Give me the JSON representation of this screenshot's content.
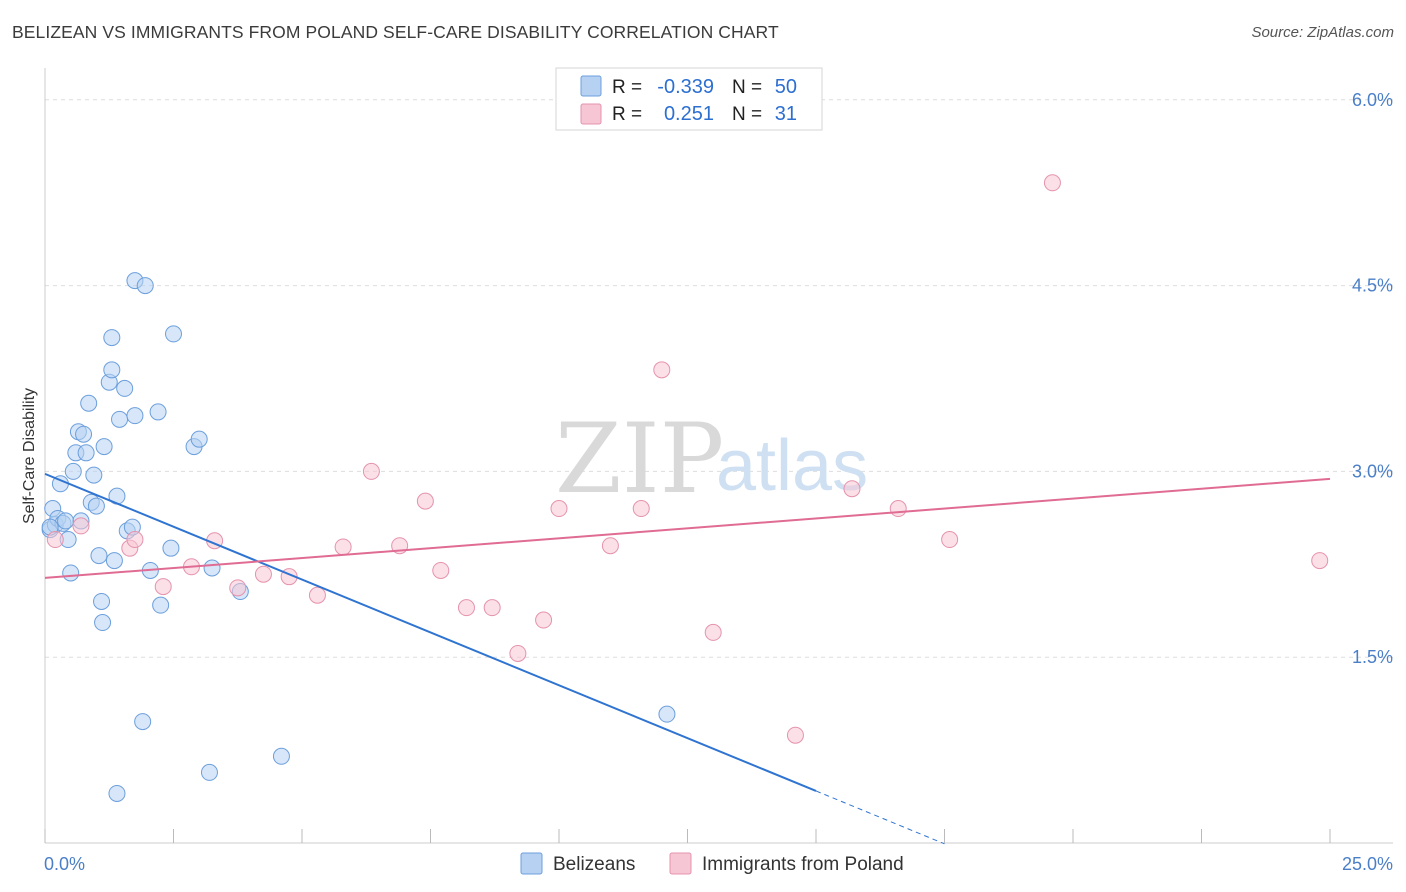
{
  "title": "BELIZEAN VS IMMIGRANTS FROM POLAND SELF-CARE DISABILITY CORRELATION CHART",
  "source": "Source: ZipAtlas.com",
  "watermark": {
    "zip": "ZIP",
    "atlas": "atlas"
  },
  "colors": {
    "belizeans_fill": "#b7d1f2",
    "belizeans_stroke": "#6c9fdc",
    "belizeans_line": "#2f74d0",
    "poland_fill": "#f7c6d4",
    "poland_stroke": "#e593ad",
    "poland_line": "#e06b93",
    "grid": "#dddddd",
    "tick_label": "#4a7fc8"
  },
  "legend_top": {
    "rows": [
      {
        "r_label": "R =",
        "r_value": "-0.339",
        "n_label": "N =",
        "n_value": "50"
      },
      {
        "r_label": "R =",
        "r_value": "0.251",
        "n_label": "N =",
        "n_value": "31"
      }
    ]
  },
  "chart_data": {
    "type": "scatter",
    "xlabel": "",
    "ylabel": "Self-Care Disability",
    "xlim": [
      0,
      25
    ],
    "ylim": [
      0,
      6.2
    ],
    "x_tick_labels": [
      "0.0%",
      "25.0%"
    ],
    "y_ticks": [
      1.5,
      3.0,
      4.5,
      6.0
    ],
    "y_tick_labels": [
      "1.5%",
      "3.0%",
      "4.5%",
      "6.0%"
    ],
    "grid": true,
    "legend_position": "bottom",
    "series": [
      {
        "name": "Belizeans",
        "r": -0.339,
        "n": 50,
        "trend": {
          "x0": 0.0,
          "y0": 2.98,
          "x1": 15.0,
          "y1": 0.42,
          "dash_to_x": 17.5
        },
        "points": [
          [
            0.1,
            2.53
          ],
          [
            0.15,
            2.7
          ],
          [
            0.2,
            2.57
          ],
          [
            0.25,
            2.62
          ],
          [
            0.3,
            2.9
          ],
          [
            0.35,
            2.58
          ],
          [
            0.4,
            2.6
          ],
          [
            0.45,
            2.45
          ],
          [
            0.5,
            2.18
          ],
          [
            0.55,
            3.0
          ],
          [
            0.6,
            3.15
          ],
          [
            0.65,
            3.32
          ],
          [
            0.7,
            2.6
          ],
          [
            0.75,
            3.3
          ],
          [
            0.8,
            3.15
          ],
          [
            0.85,
            3.55
          ],
          [
            0.9,
            2.75
          ],
          [
            0.95,
            2.97
          ],
          [
            1.0,
            2.72
          ],
          [
            1.05,
            2.32
          ],
          [
            1.1,
            1.95
          ],
          [
            1.12,
            1.78
          ],
          [
            1.15,
            3.2
          ],
          [
            1.25,
            3.72
          ],
          [
            1.3,
            3.82
          ],
          [
            1.3,
            4.08
          ],
          [
            1.35,
            2.28
          ],
          [
            1.4,
            2.8
          ],
          [
            1.45,
            3.42
          ],
          [
            1.55,
            3.67
          ],
          [
            1.6,
            2.52
          ],
          [
            1.7,
            2.55
          ],
          [
            1.75,
            3.45
          ],
          [
            1.75,
            4.54
          ],
          [
            1.95,
            4.5
          ],
          [
            2.05,
            2.2
          ],
          [
            2.25,
            1.92
          ],
          [
            2.2,
            3.48
          ],
          [
            2.45,
            2.38
          ],
          [
            2.5,
            4.11
          ],
          [
            2.9,
            3.2
          ],
          [
            3.0,
            3.26
          ],
          [
            3.25,
            2.22
          ],
          [
            3.8,
            2.03
          ],
          [
            0.1,
            2.55
          ],
          [
            1.9,
            0.98
          ],
          [
            1.4,
            0.4
          ],
          [
            3.2,
            0.57
          ],
          [
            4.6,
            0.7
          ],
          [
            12.1,
            1.04
          ]
        ]
      },
      {
        "name": "Immigrants from Poland",
        "r": 0.251,
        "n": 31,
        "trend": {
          "x0": 0.0,
          "y0": 2.14,
          "x1": 25.0,
          "y1": 2.94
        },
        "points": [
          [
            0.2,
            2.45
          ],
          [
            0.7,
            2.56
          ],
          [
            1.65,
            2.38
          ],
          [
            1.75,
            2.45
          ],
          [
            2.3,
            2.07
          ],
          [
            2.85,
            2.23
          ],
          [
            3.3,
            2.44
          ],
          [
            3.75,
            2.06
          ],
          [
            4.25,
            2.17
          ],
          [
            4.75,
            2.15
          ],
          [
            5.3,
            2.0
          ],
          [
            5.8,
            2.39
          ],
          [
            6.35,
            3.0
          ],
          [
            6.9,
            2.4
          ],
          [
            7.4,
            2.76
          ],
          [
            7.7,
            2.2
          ],
          [
            8.2,
            1.9
          ],
          [
            8.7,
            1.9
          ],
          [
            9.2,
            1.53
          ],
          [
            9.7,
            1.8
          ],
          [
            10.0,
            2.7
          ],
          [
            11.0,
            2.4
          ],
          [
            11.6,
            2.7
          ],
          [
            12.0,
            3.82
          ],
          [
            13.0,
            1.7
          ],
          [
            14.6,
            0.87
          ],
          [
            15.7,
            2.86
          ],
          [
            16.6,
            2.7
          ],
          [
            17.6,
            2.45
          ],
          [
            19.6,
            5.33
          ],
          [
            24.8,
            2.28
          ]
        ]
      }
    ]
  }
}
